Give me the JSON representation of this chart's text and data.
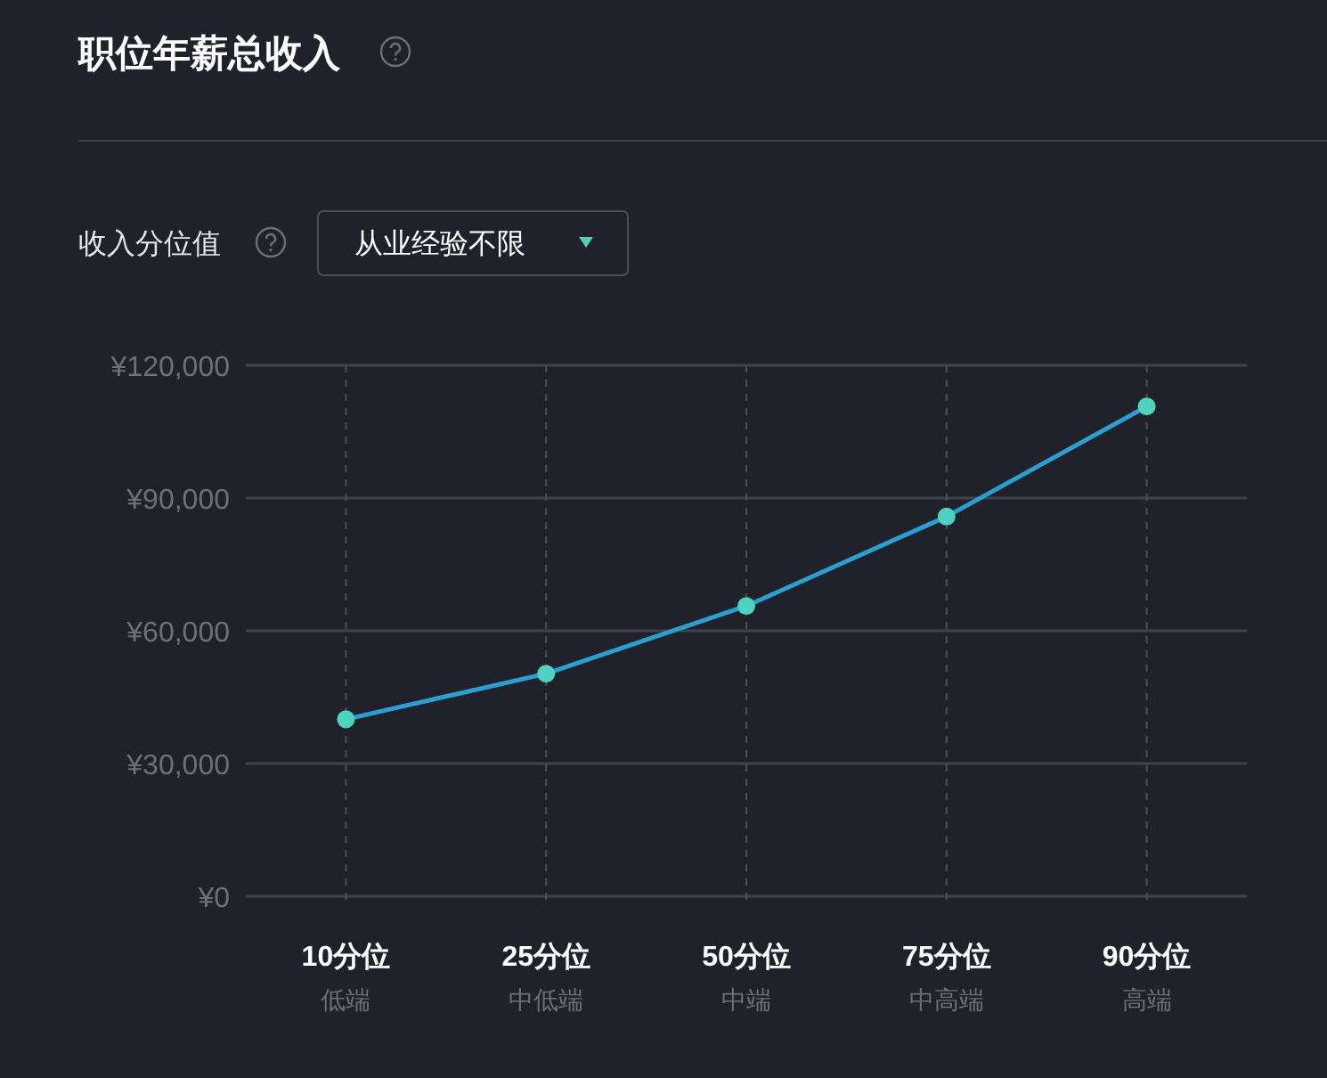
{
  "chart_data": {
    "type": "line",
    "title": "职位年薪总收入",
    "annotations": [
      "收入分位值",
      "从业经验不限",
      "低端",
      "中低端",
      "中端",
      "中高端",
      "高端"
    ],
    "categories": [
      "10分位",
      "25分位",
      "50分位",
      "75分位",
      "90分位"
    ],
    "series": [
      {
        "color": "#2a9fd0",
        "colors": [
          "#4fd1c0",
          "#4fd1c0",
          "#4fd1c0",
          "#4fd1c0",
          "#4fd1c0"
        ],
        "values": [
          40000,
          50300,
          65600,
          85800,
          110700
        ]
      }
    ],
    "ylim": [
      0,
      120000
    ],
    "yticks": [
      {
        "value": 0,
        "label": "¥0"
      },
      {
        "value": 30000,
        "label": "¥30,000"
      },
      {
        "value": 60000,
        "label": "¥60,000"
      },
      {
        "value": 90000,
        "label": "¥90,000"
      },
      {
        "value": 120000,
        "label": "¥120,000"
      }
    ],
    "grid": true,
    "marker": "circle",
    "line_style": "solid"
  }
}
